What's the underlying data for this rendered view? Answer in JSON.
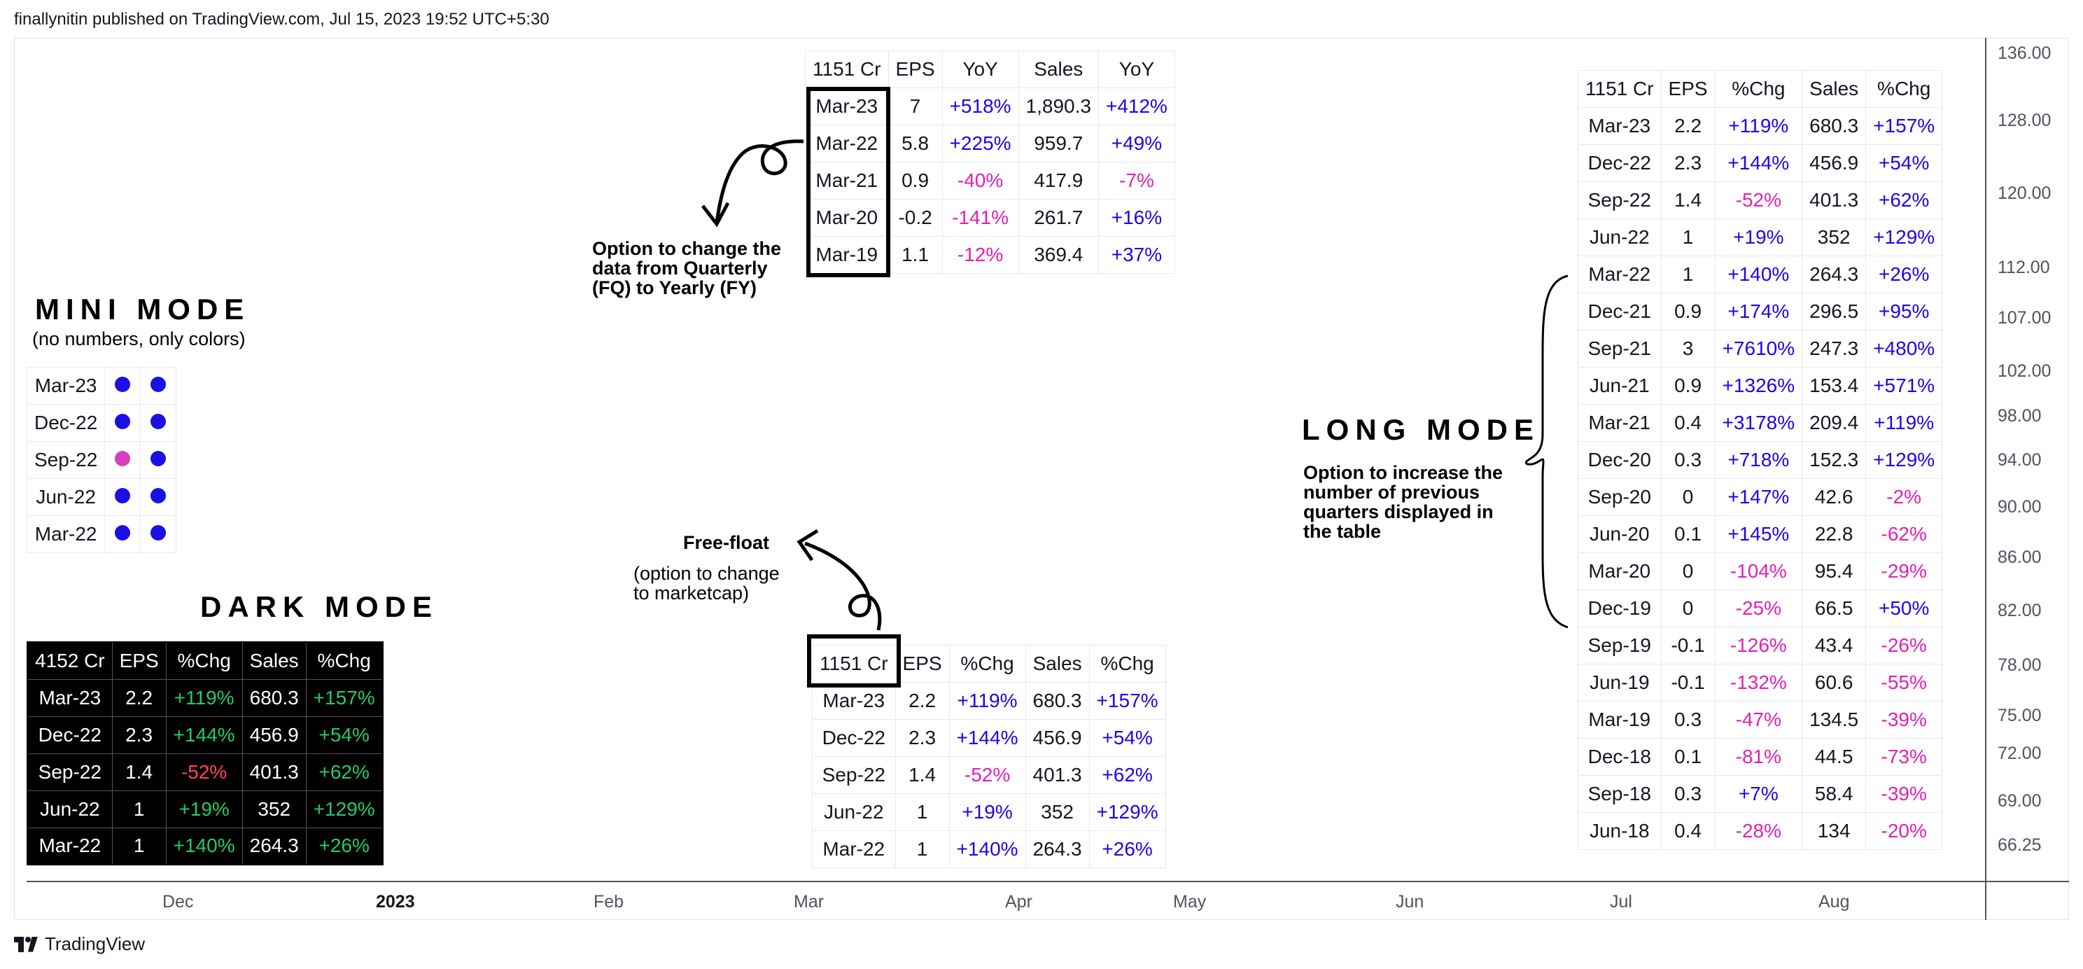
{
  "header": {
    "publisher_line": "finallynitin published on TradingView.com, Jul 15, 2023 19:52 UTC+5:30"
  },
  "footer": {
    "brand": "TradingView"
  },
  "price_scale": [
    "136.00",
    "128.00",
    "120.00",
    "112.00",
    "107.00",
    "102.00",
    "98.00",
    "94.00",
    "90.00",
    "86.00",
    "82.00",
    "78.00",
    "75.00",
    "72.00",
    "69.00",
    "66.25"
  ],
  "time_axis": [
    {
      "label": "Dec",
      "bold": false
    },
    {
      "label": "2023",
      "bold": true
    },
    {
      "label": "Feb",
      "bold": false
    },
    {
      "label": "Mar",
      "bold": false
    },
    {
      "label": "Apr",
      "bold": false
    },
    {
      "label": "May",
      "bold": false
    },
    {
      "label": "Jun",
      "bold": false
    },
    {
      "label": "Jul",
      "bold": false
    },
    {
      "label": "Aug",
      "bold": false
    }
  ],
  "colors": {
    "positive": "#2200ee",
    "negative": "#e020b8",
    "dark_positive": "#22cc66",
    "dark_negative": "#ff4455",
    "mini_dot_positive": "#1a10e6",
    "mini_dot_negative": "#d53fc0"
  },
  "annotations": {
    "mini_title": "MINI MODE",
    "mini_sub": "(no numbers, only colors)",
    "dark_title": "DARK MODE",
    "long_title": "LONG MODE",
    "long_note": [
      "Option to increase the",
      "number of previous",
      "quarters displayed in",
      "the table"
    ],
    "yearly_note": [
      "Option to change the",
      "data from Quarterly",
      "(FQ) to Yearly (FY)"
    ],
    "freefloat_title": "Free-float",
    "freefloat_sub": [
      "(option to change",
      "to marketcap)"
    ]
  },
  "yearly_table": {
    "header": [
      "1151 Cr",
      "EPS",
      "YoY",
      "Sales",
      "YoY"
    ],
    "rows": [
      [
        "Mar-23",
        "7",
        "+518%",
        "1,890.3",
        "+412%"
      ],
      [
        "Mar-22",
        "5.8",
        "+225%",
        "959.7",
        "+49%"
      ],
      [
        "Mar-21",
        "0.9",
        "-40%",
        "417.9",
        "-7%"
      ],
      [
        "Mar-20",
        "-0.2",
        "-141%",
        "261.7",
        "+16%"
      ],
      [
        "Mar-19",
        "1.1",
        "-12%",
        "369.4",
        "+37%"
      ]
    ]
  },
  "mini_table": {
    "rows": [
      {
        "label": "Mar-23",
        "dots": [
          "pos",
          "pos"
        ]
      },
      {
        "label": "Dec-22",
        "dots": [
          "pos",
          "pos"
        ]
      },
      {
        "label": "Sep-22",
        "dots": [
          "neg",
          "pos"
        ]
      },
      {
        "label": "Jun-22",
        "dots": [
          "pos",
          "pos"
        ]
      },
      {
        "label": "Mar-22",
        "dots": [
          "pos",
          "pos"
        ]
      }
    ]
  },
  "dark_table": {
    "header": [
      "4152 Cr",
      "EPS",
      "%Chg",
      "Sales",
      "%Chg"
    ],
    "rows": [
      [
        "Mar-23",
        "2.2",
        "+119%",
        "680.3",
        "+157%"
      ],
      [
        "Dec-22",
        "2.3",
        "+144%",
        "456.9",
        "+54%"
      ],
      [
        "Sep-22",
        "1.4",
        "-52%",
        "401.3",
        "+62%"
      ],
      [
        "Jun-22",
        "1",
        "+19%",
        "352",
        "+129%"
      ],
      [
        "Mar-22",
        "1",
        "+140%",
        "264.3",
        "+26%"
      ]
    ]
  },
  "freefloat_table": {
    "header": [
      "1151 Cr",
      "EPS",
      "%Chg",
      "Sales",
      "%Chg"
    ],
    "rows": [
      [
        "Mar-23",
        "2.2",
        "+119%",
        "680.3",
        "+157%"
      ],
      [
        "Dec-22",
        "2.3",
        "+144%",
        "456.9",
        "+54%"
      ],
      [
        "Sep-22",
        "1.4",
        "-52%",
        "401.3",
        "+62%"
      ],
      [
        "Jun-22",
        "1",
        "+19%",
        "352",
        "+129%"
      ],
      [
        "Mar-22",
        "1",
        "+140%",
        "264.3",
        "+26%"
      ]
    ]
  },
  "long_table": {
    "header": [
      "1151 Cr",
      "EPS",
      "%Chg",
      "Sales",
      "%Chg"
    ],
    "rows": [
      [
        "Mar-23",
        "2.2",
        "+119%",
        "680.3",
        "+157%"
      ],
      [
        "Dec-22",
        "2.3",
        "+144%",
        "456.9",
        "+54%"
      ],
      [
        "Sep-22",
        "1.4",
        "-52%",
        "401.3",
        "+62%"
      ],
      [
        "Jun-22",
        "1",
        "+19%",
        "352",
        "+129%"
      ],
      [
        "Mar-22",
        "1",
        "+140%",
        "264.3",
        "+26%"
      ],
      [
        "Dec-21",
        "0.9",
        "+174%",
        "296.5",
        "+95%"
      ],
      [
        "Sep-21",
        "3",
        "+7610%",
        "247.3",
        "+480%"
      ],
      [
        "Jun-21",
        "0.9",
        "+1326%",
        "153.4",
        "+571%"
      ],
      [
        "Mar-21",
        "0.4",
        "+3178%",
        "209.4",
        "+119%"
      ],
      [
        "Dec-20",
        "0.3",
        "+718%",
        "152.3",
        "+129%"
      ],
      [
        "Sep-20",
        "0",
        "+147%",
        "42.6",
        "-2%"
      ],
      [
        "Jun-20",
        "0.1",
        "+145%",
        "22.8",
        "-62%"
      ],
      [
        "Mar-20",
        "0",
        "-104%",
        "95.4",
        "-29%"
      ],
      [
        "Dec-19",
        "0",
        "-25%",
        "66.5",
        "+50%"
      ],
      [
        "Sep-19",
        "-0.1",
        "-126%",
        "43.4",
        "-26%"
      ],
      [
        "Jun-19",
        "-0.1",
        "-132%",
        "60.6",
        "-55%"
      ],
      [
        "Mar-19",
        "0.3",
        "-47%",
        "134.5",
        "-39%"
      ],
      [
        "Dec-18",
        "0.1",
        "-81%",
        "44.5",
        "-73%"
      ],
      [
        "Sep-18",
        "0.3",
        "+7%",
        "58.4",
        "-39%"
      ],
      [
        "Jun-18",
        "0.4",
        "-28%",
        "134",
        "-20%"
      ]
    ]
  }
}
